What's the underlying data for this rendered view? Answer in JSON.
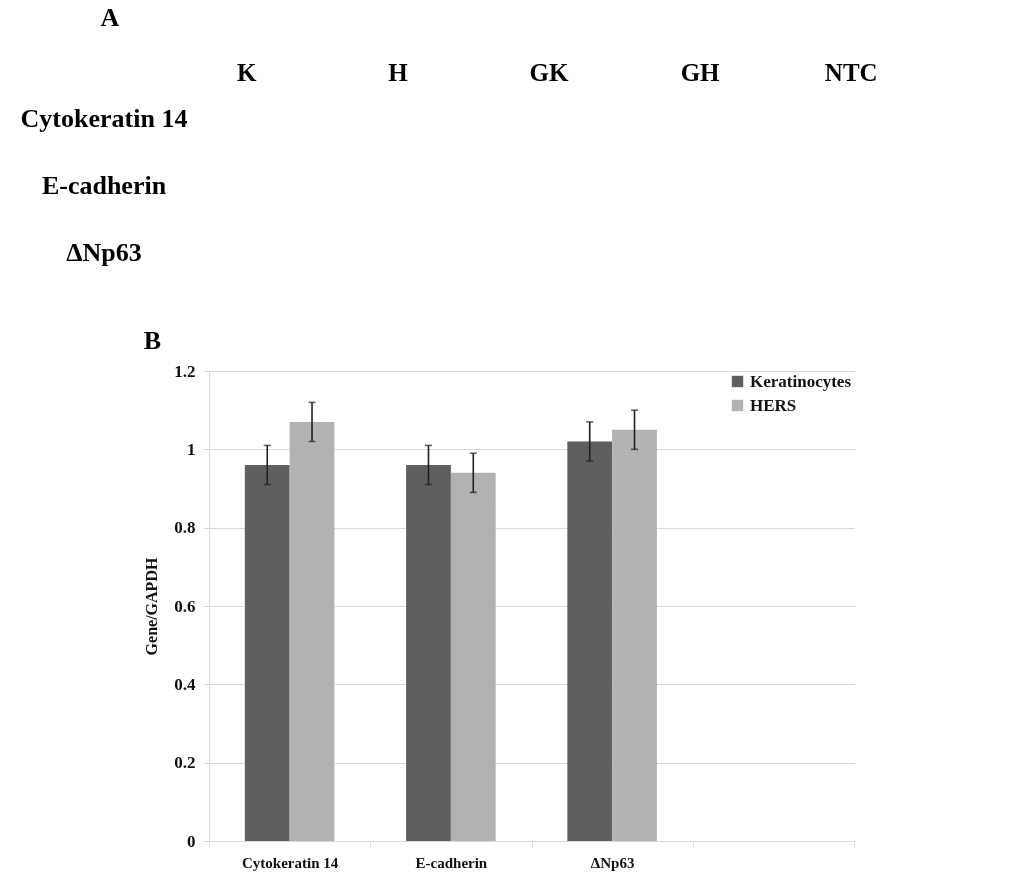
{
  "chart_data": [
    {
      "type": "other",
      "title": "A",
      "categories": [
        "K",
        "H",
        "GK",
        "GH",
        "NTC"
      ],
      "y_categories": [
        "Cytokeratin 14",
        "E-cadherin",
        "ΔNp63"
      ]
    },
    {
      "type": "bar",
      "title": "B",
      "ylabel": "Gene/GAPDH",
      "categories": [
        "Cytokeratin 14",
        "E-cadherin",
        "ΔNp63",
        null
      ],
      "series": [
        {
          "name": "Keratinocytes",
          "color": "#5f5f5f",
          "values": [
            0.96,
            0.96,
            1.02,
            null
          ],
          "errors": [
            0.05,
            0.05,
            0.05,
            null
          ]
        },
        {
          "name": "HERS",
          "color": "#b2b2b2",
          "values": [
            1.07,
            0.94,
            1.05,
            null
          ],
          "errors": [
            0.05,
            0.05,
            0.05,
            null
          ]
        }
      ],
      "ylim": [
        0,
        1.2
      ],
      "yticks": [
        0,
        0.2,
        0.4,
        0.6,
        0.8,
        1,
        1.2
      ],
      "grid": "y",
      "legend": "top right"
    }
  ]
}
